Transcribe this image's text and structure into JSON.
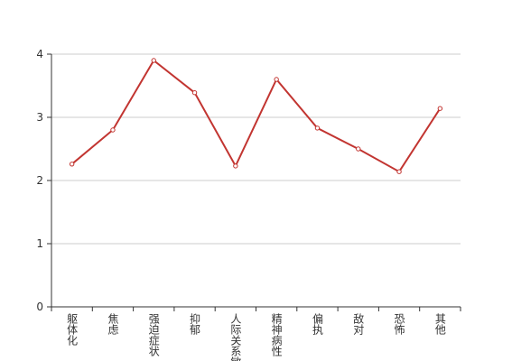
{
  "chart_data": {
    "type": "line",
    "categories": [
      "躯体化",
      "焦虑",
      "强迫症状",
      "抑郁",
      "人际关系敏感",
      "精神病性",
      "偏执",
      "敌对",
      "恐怖",
      "其他"
    ],
    "values": [
      2.26,
      2.8,
      3.9,
      3.39,
      2.23,
      3.6,
      2.83,
      2.5,
      2.14,
      3.14
    ],
    "color": "#c23531",
    "ylim": [
      0,
      4
    ],
    "yticks": [
      0,
      1,
      2,
      3,
      4
    ],
    "grid": true
  }
}
